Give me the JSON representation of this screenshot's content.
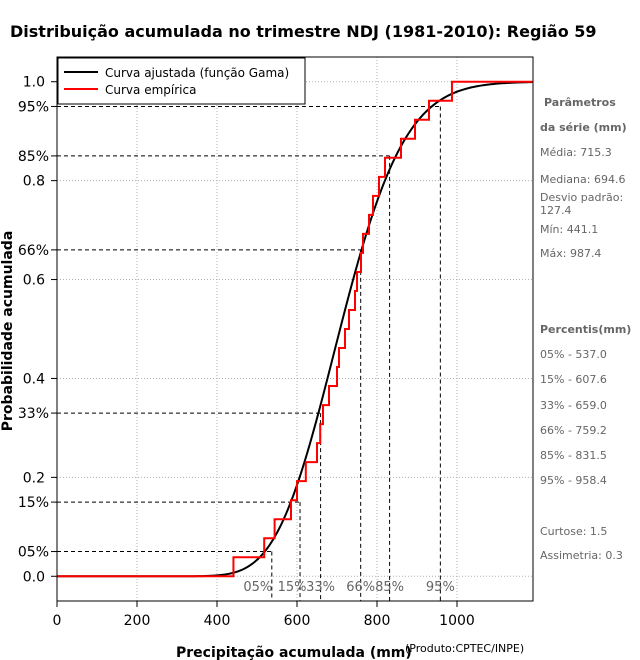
{
  "chart_data": {
    "type": "line",
    "title": "Distribuição acumulada no trimestre NDJ (1981-2010): Região 59",
    "xlabel": "Precipitação acumulada (mm)",
    "ylabel": "Probabilidade acumulada",
    "credit": "(Produto:CPTEC/INPE)",
    "xlim": [
      0,
      1190
    ],
    "ylim": [
      -0.05,
      1.05
    ],
    "x_ticks": [
      0,
      200,
      400,
      600,
      800,
      1000
    ],
    "y_ticks": [
      0.0,
      0.2,
      0.4,
      0.6,
      0.8,
      1.0
    ],
    "y_tick_labels": [
      "0.0",
      "0.2",
      "0.4",
      "0.6",
      "0.8",
      "1.0"
    ],
    "legend": {
      "position": "top-left",
      "entries": [
        {
          "label": "Curva ajustada (função Gama)",
          "color": "#000000"
        },
        {
          "label": "Curva empírica",
          "color": "#ff0000"
        }
      ]
    },
    "series": [
      {
        "name": "Curva ajustada (função Gama)",
        "color": "#000000",
        "distribution": "gamma",
        "mean": 715.3,
        "sd": 127.4
      },
      {
        "name": "Curva empírica",
        "color": "#ff0000",
        "step_x": [
          441.1,
          518,
          544,
          585,
          600,
          622,
          650,
          658,
          665,
          680,
          700,
          705,
          720,
          730,
          745,
          750,
          760,
          765,
          780,
          790,
          805,
          820,
          860,
          895,
          930,
          987.4
        ],
        "n": 30
      }
    ],
    "percentiles": [
      {
        "label": "05%",
        "prob": 0.05,
        "value": 537.0
      },
      {
        "label": "15%",
        "prob": 0.15,
        "value": 607.6
      },
      {
        "label": "33%",
        "prob": 0.33,
        "value": 659.0
      },
      {
        "label": "66%",
        "prob": 0.66,
        "value": 759.2
      },
      {
        "label": "85%",
        "prob": 0.85,
        "value": 831.5
      },
      {
        "label": "95%",
        "prob": 0.95,
        "value": 958.4
      }
    ],
    "percentile_axis_labels": [
      "05%",
      "15%",
      "33%",
      "66%",
      "85%",
      "95%"
    ]
  },
  "sidebar": {
    "params_title_1": "Parâmetros",
    "params_title_2": "da série (mm)",
    "media": "Média: 715.3",
    "mediana": "Mediana: 694.6",
    "desvio": "Desvio padrão: 127.4",
    "min": "Mín: 441.1",
    "max": "Máx: 987.4",
    "percentis_title": "Percentis(mm)",
    "p05": "05% - 537.0",
    "p15": "15% - 607.6",
    "p33": "33% - 659.0",
    "p66": "66% - 759.2",
    "p85": "85% - 831.5",
    "p95": "95% - 958.4",
    "curtose": "Curtose: 1.5",
    "assimetria": "Assimetria: 0.3"
  }
}
